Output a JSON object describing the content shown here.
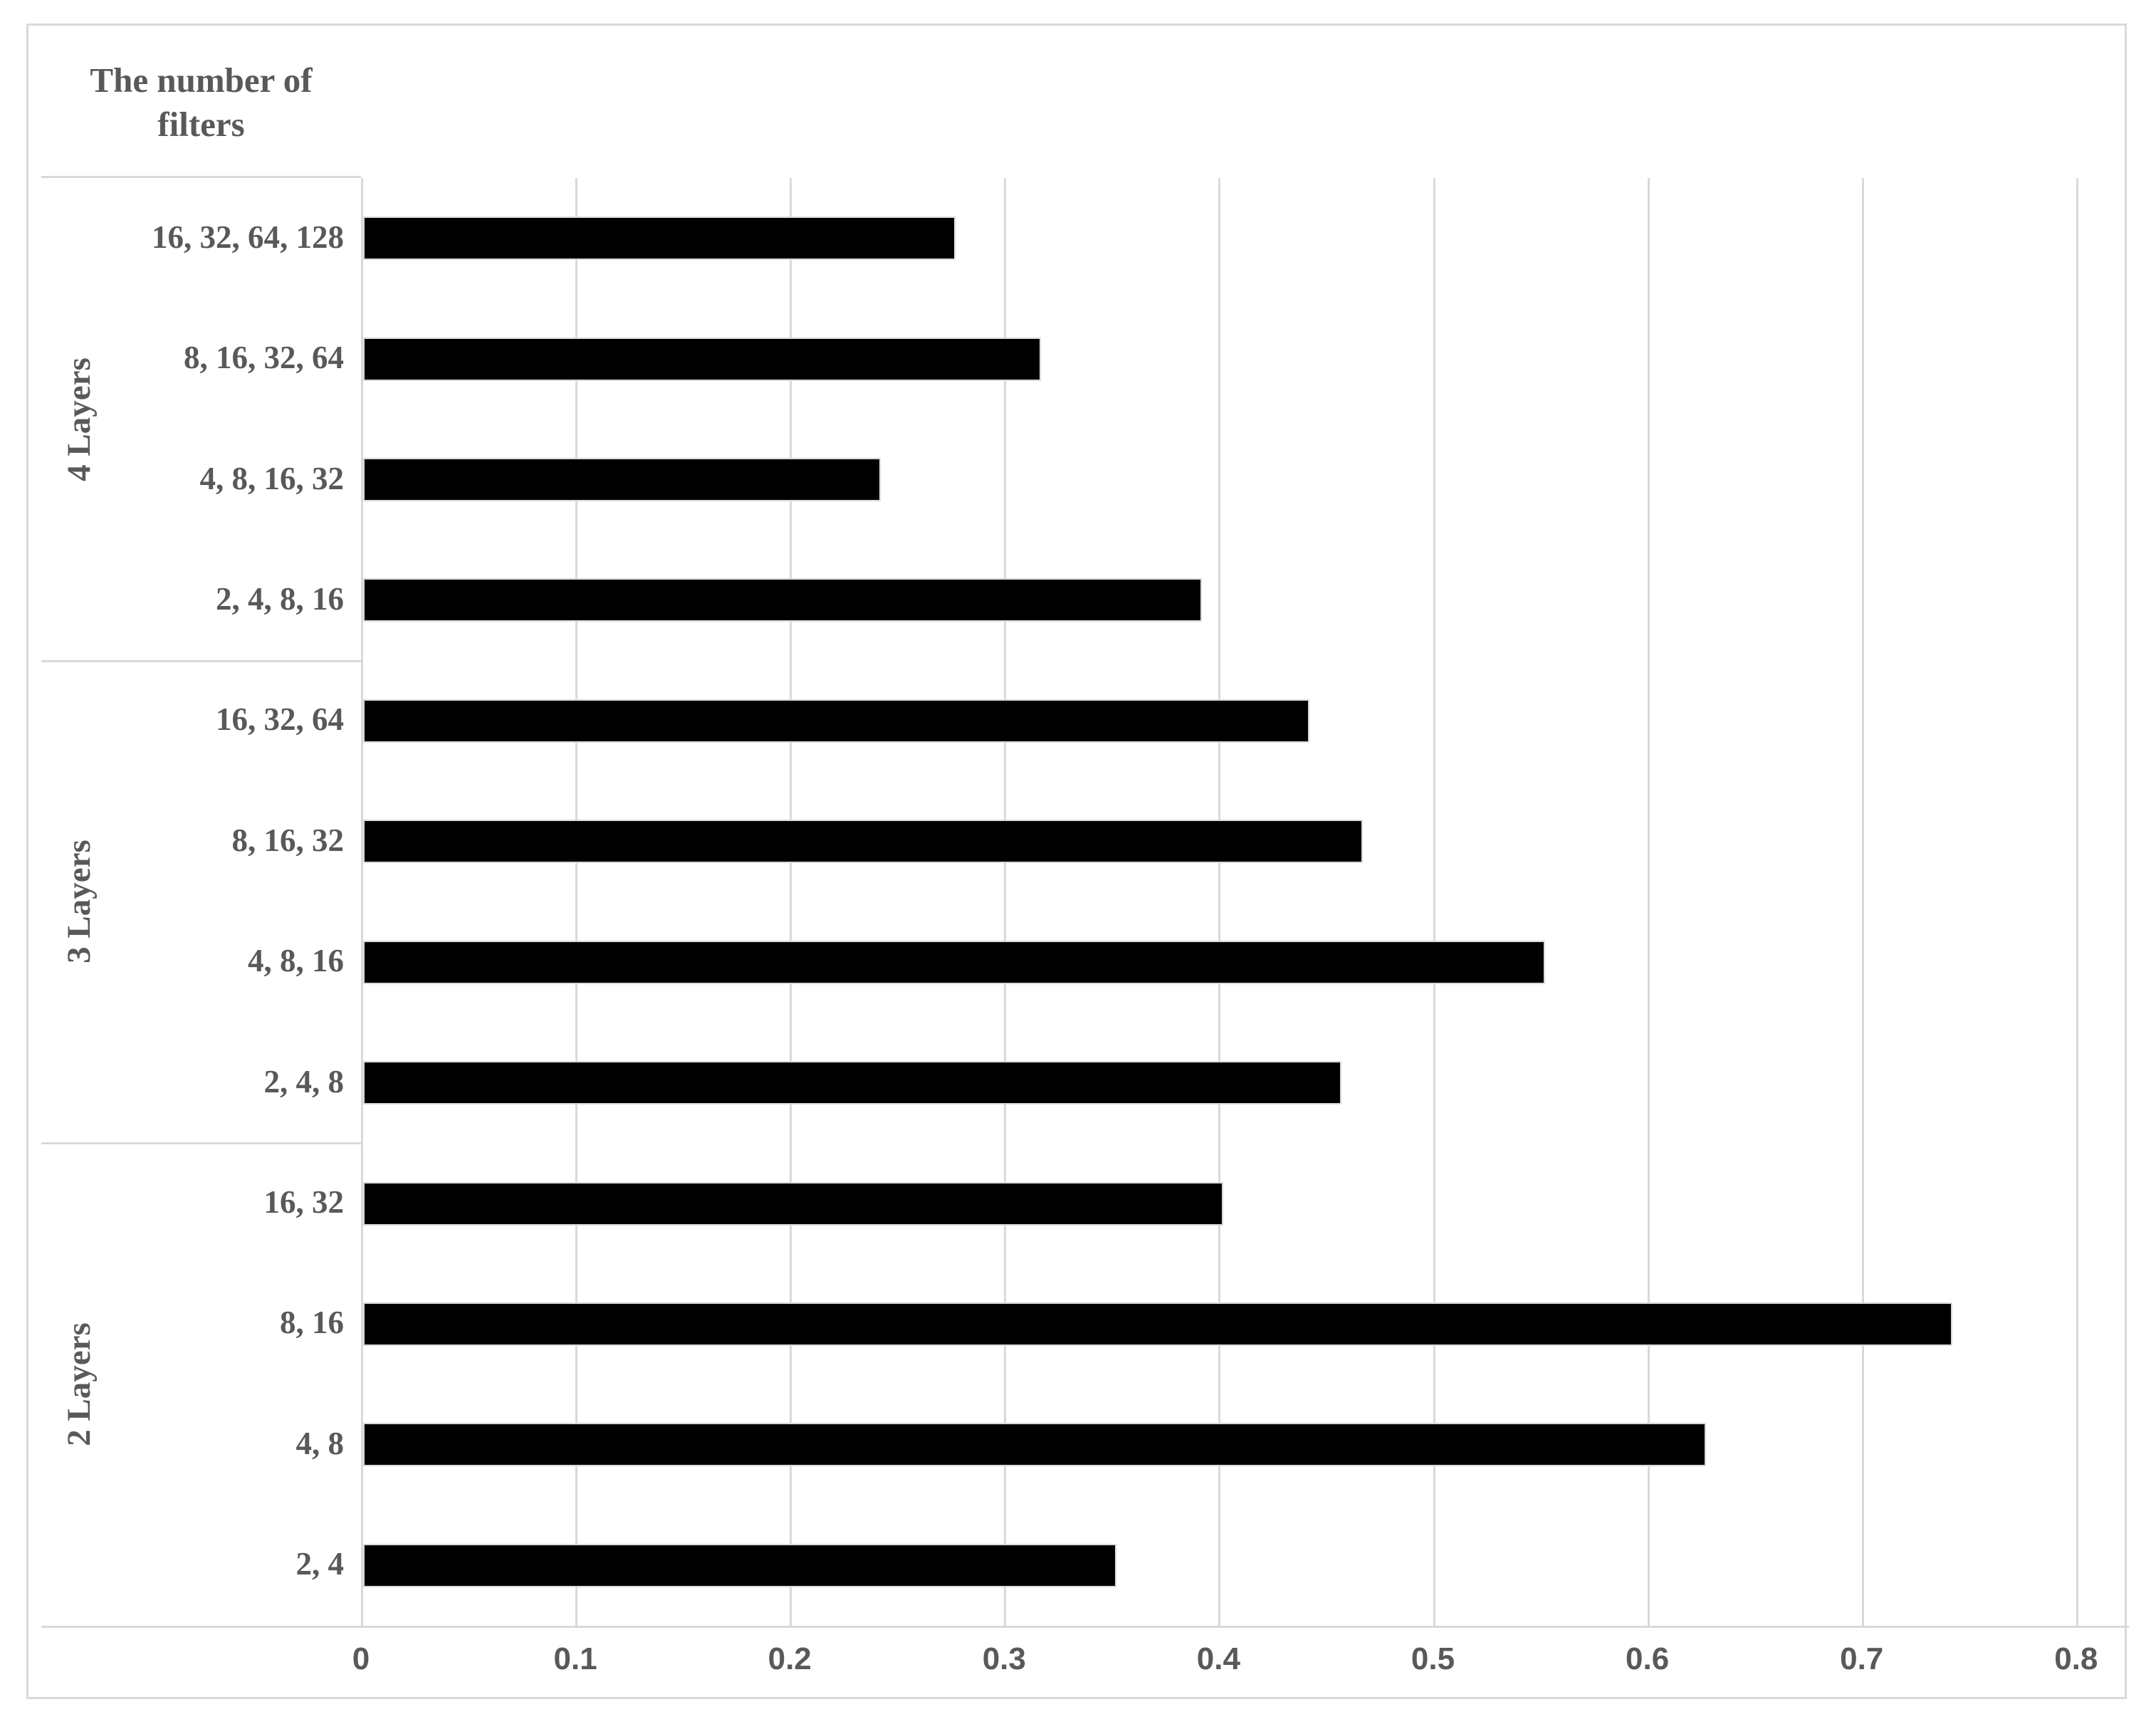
{
  "header": {
    "title": "The number of filters"
  },
  "chart_data": {
    "type": "bar",
    "orientation": "horizontal",
    "title": "The number of filters",
    "legend_position": "none",
    "grid": true,
    "xlabel": "",
    "ylabel": "The number of filters",
    "x_axis": {
      "min": 0,
      "max": 0.8,
      "tick_step": 0.1,
      "tick_labels": [
        "0",
        "0.1",
        "0.2",
        "0.3",
        "0.4",
        "0.5",
        "0.6",
        "0.7",
        "0.8"
      ]
    },
    "groups": [
      {
        "label": "4 Layers",
        "items": [
          {
            "label": "16, 32, 64, 128",
            "value": 0.275
          },
          {
            "label": "8, 16, 32, 64",
            "value": 0.315
          },
          {
            "label": "4, 8, 16, 32",
            "value": 0.24
          },
          {
            "label": "2, 4, 8, 16",
            "value": 0.39
          }
        ]
      },
      {
        "label": "3 Layers",
        "items": [
          {
            "label": "16, 32, 64",
            "value": 0.44
          },
          {
            "label": "8, 16, 32",
            "value": 0.465
          },
          {
            "label": "4, 8, 16",
            "value": 0.55
          },
          {
            "label": "2, 4, 8",
            "value": 0.455
          }
        ]
      },
      {
        "label": "2 Layers",
        "items": [
          {
            "label": "16, 32",
            "value": 0.4
          },
          {
            "label": "8, 16",
            "value": 0.74
          },
          {
            "label": "4, 8",
            "value": 0.625
          },
          {
            "label": "2, 4",
            "value": 0.35
          }
        ]
      }
    ],
    "colors": {
      "bar": "#000000",
      "bar_outline": "#d9d9d9",
      "gridline": "#d9d9d9",
      "text": "#595959",
      "figure_border": "#d9d9d9",
      "background": "#ffffff"
    }
  }
}
